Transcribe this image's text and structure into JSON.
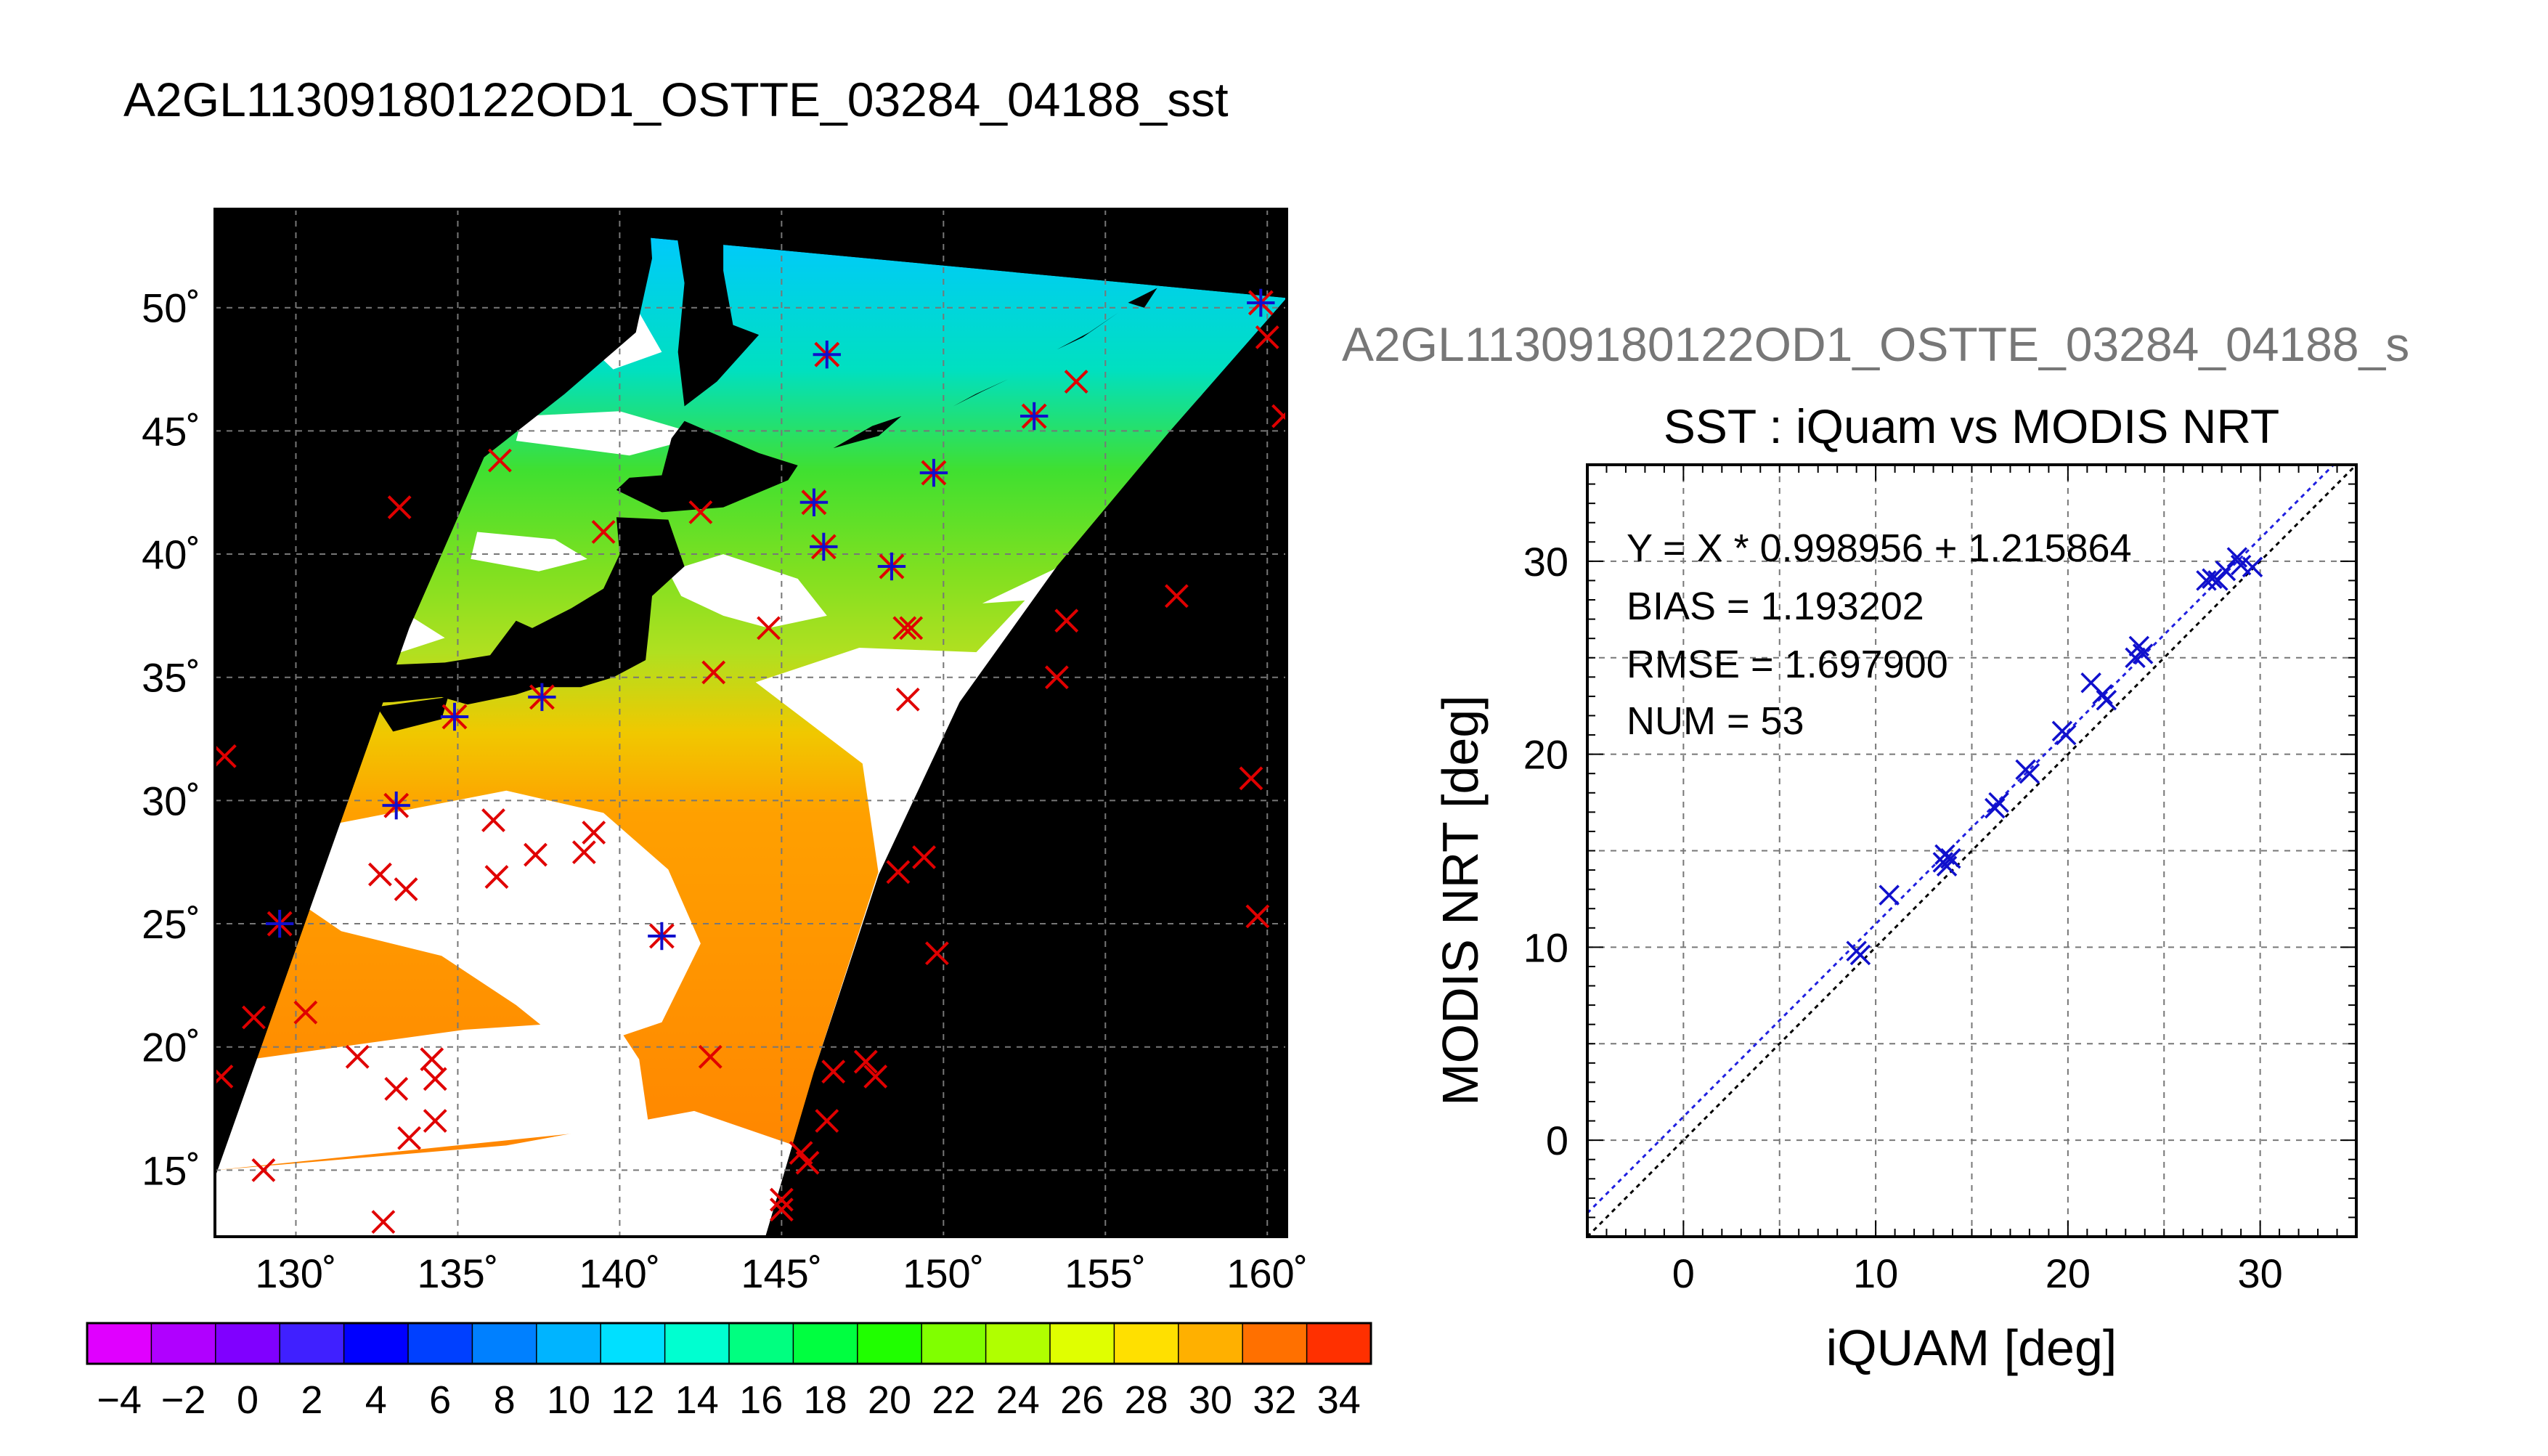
{
  "main_title": "A2GL11309180122OD1_OSTTE_03284_04188_sst",
  "colors": {
    "land": "#000000",
    "cloud": "#ffffff",
    "grid": "#777777",
    "matchup_red": "#e00000",
    "matchup_blue": "#1010cc",
    "fit_line": "#2020e0"
  },
  "map": {
    "lon_ticks": [
      130,
      135,
      140,
      145,
      150,
      155,
      160
    ],
    "lat_ticks": [
      15,
      20,
      25,
      30,
      35,
      40,
      45,
      50
    ],
    "lon_range": [
      127.5,
      160.6
    ],
    "lat_range": [
      12.3,
      54.0
    ],
    "lon_tick_labels": [
      "130˚",
      "135˚",
      "140˚",
      "145˚",
      "150˚",
      "155˚",
      "160˚"
    ],
    "lat_tick_labels": [
      "15˚",
      "20˚",
      "25˚",
      "30˚",
      "35˚",
      "40˚",
      "45˚",
      "50˚"
    ],
    "points_red": [
      [
        127.8,
        31.8
      ],
      [
        128.7,
        21.2
      ],
      [
        127.7,
        18.8
      ],
      [
        129.0,
        15.0
      ],
      [
        130.3,
        21.4
      ],
      [
        131.9,
        19.6
      ],
      [
        132.7,
        12.9
      ],
      [
        132.6,
        27.0
      ],
      [
        133.1,
        18.3
      ],
      [
        133.5,
        16.3
      ],
      [
        133.4,
        26.4
      ],
      [
        134.3,
        17.0
      ],
      [
        134.2,
        19.5
      ],
      [
        134.3,
        18.7
      ],
      [
        133.2,
        41.9
      ],
      [
        136.1,
        29.2
      ],
      [
        136.2,
        26.9
      ],
      [
        137.4,
        27.8
      ],
      [
        138.9,
        27.9
      ],
      [
        139.2,
        28.7
      ],
      [
        139.5,
        40.9
      ],
      [
        136.3,
        43.8
      ],
      [
        142.5,
        41.7
      ],
      [
        142.9,
        35.2
      ],
      [
        142.8,
        19.6
      ],
      [
        144.6,
        37.0
      ],
      [
        145.0,
        13.4
      ],
      [
        145.0,
        13.8
      ],
      [
        145.6,
        15.7
      ],
      [
        145.8,
        15.3
      ],
      [
        146.4,
        17.0
      ],
      [
        146.6,
        19.0
      ],
      [
        147.6,
        19.4
      ],
      [
        147.9,
        18.8
      ],
      [
        148.6,
        27.1
      ],
      [
        148.8,
        37.0
      ],
      [
        149.0,
        37.0
      ],
      [
        149.4,
        27.7
      ],
      [
        149.8,
        23.8
      ],
      [
        148.9,
        34.1
      ],
      [
        153.5,
        35.0
      ],
      [
        153.8,
        37.3
      ],
      [
        157.2,
        38.3
      ],
      [
        159.5,
        30.9
      ],
      [
        159.7,
        25.3
      ],
      [
        160.0,
        48.8
      ],
      [
        160.5,
        45.6
      ],
      [
        154.1,
        47.0
      ]
    ],
    "points_blue": [
      [
        133.1,
        29.8
      ],
      [
        134.9,
        33.4
      ],
      [
        129.5,
        25.0
      ],
      [
        137.6,
        34.2
      ],
      [
        141.3,
        24.5
      ],
      [
        146.0,
        42.1
      ],
      [
        146.3,
        40.3
      ],
      [
        148.4,
        39.5
      ],
      [
        149.7,
        43.3
      ],
      [
        152.8,
        45.6
      ],
      [
        146.4,
        48.1
      ],
      [
        159.8,
        50.2
      ]
    ]
  },
  "colorbar": {
    "tick_labels": [
      "−4",
      "−2",
      "0",
      "2",
      "4",
      "6",
      "8",
      "10",
      "12",
      "14",
      "16",
      "18",
      "20",
      "22",
      "24",
      "26",
      "28",
      "30",
      "32",
      "34"
    ],
    "range": [
      -5,
      35
    ]
  },
  "scatter": {
    "header": "A2GL11309180122OD1_OSTTE_03284_04188_s",
    "header_color": "#777777",
    "title": "SST : iQuam vs MODIS NRT",
    "stats": {
      "line1": "Y = X * 0.998956 + 1.215864",
      "line2": "BIAS = 1.193202",
      "line3": "RMSE = 1.697900",
      "line4": "NUM = 53"
    }
  },
  "chart_data": {
    "type": "scatter",
    "title": "SST : iQuam vs MODIS NRT",
    "xlabel": "iQUAM [deg]",
    "ylabel": "MODIS NRT [deg]",
    "xlim": [
      -5,
      35
    ],
    "ylim": [
      -5,
      35
    ],
    "xticks": [
      0,
      10,
      20,
      30
    ],
    "yticks": [
      0,
      10,
      20,
      30
    ],
    "grid": true,
    "fit": {
      "slope": 0.998956,
      "intercept": 1.215864
    },
    "points": [
      [
        9.0,
        9.8
      ],
      [
        9.2,
        9.6
      ],
      [
        10.7,
        12.7
      ],
      [
        13.5,
        14.4
      ],
      [
        13.6,
        14.8
      ],
      [
        13.9,
        14.6
      ],
      [
        13.7,
        14.2
      ],
      [
        16.2,
        17.2
      ],
      [
        16.4,
        17.5
      ],
      [
        17.8,
        19.2
      ],
      [
        18.0,
        19.0
      ],
      [
        19.7,
        21.2
      ],
      [
        19.9,
        21.0
      ],
      [
        21.2,
        23.7
      ],
      [
        21.8,
        23.1
      ],
      [
        22.0,
        22.8
      ],
      [
        23.5,
        25.0
      ],
      [
        23.7,
        25.6
      ],
      [
        23.9,
        25.2
      ],
      [
        27.2,
        29.0
      ],
      [
        27.5,
        29.1
      ],
      [
        27.8,
        29.0
      ],
      [
        28.2,
        29.5
      ],
      [
        28.8,
        30.2
      ],
      [
        29.0,
        29.8
      ],
      [
        29.6,
        29.7
      ]
    ]
  }
}
